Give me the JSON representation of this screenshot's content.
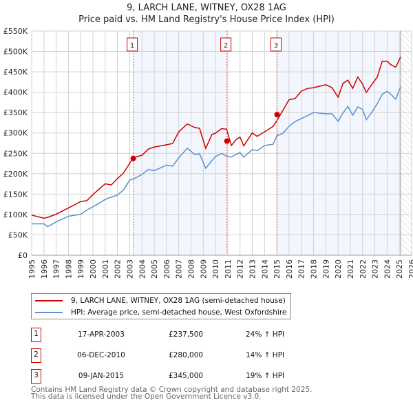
{
  "chart_data": {
    "type": "line",
    "title": "9, LARCH LANE, WITNEY, OX28 1AG",
    "subtitle": "Price paid vs. HM Land Registry's House Price Index (HPI)",
    "xlim": [
      1995,
      2026
    ],
    "ylim": [
      0,
      550000
    ],
    "x_ticks": [
      "1995",
      "1996",
      "1997",
      "1998",
      "1999",
      "2000",
      "2001",
      "2002",
      "2003",
      "2004",
      "2005",
      "2006",
      "2007",
      "2008",
      "2009",
      "2010",
      "2011",
      "2012",
      "2013",
      "2014",
      "2015",
      "2016",
      "2017",
      "2018",
      "2019",
      "2020",
      "2021",
      "2022",
      "2023",
      "2024",
      "2025",
      "2026"
    ],
    "y_ticks": [
      {
        "v": 0,
        "label": "£0"
      },
      {
        "v": 50000,
        "label": "£50K"
      },
      {
        "v": 100000,
        "label": "£100K"
      },
      {
        "v": 150000,
        "label": "£150K"
      },
      {
        "v": 200000,
        "label": "£200K"
      },
      {
        "v": 250000,
        "label": "£250K"
      },
      {
        "v": 300000,
        "label": "£300K"
      },
      {
        "v": 350000,
        "label": "£350K"
      },
      {
        "v": 400000,
        "label": "£400K"
      },
      {
        "v": 450000,
        "label": "£450K"
      },
      {
        "v": 500000,
        "label": "£500K"
      },
      {
        "v": 550000,
        "label": "£550K"
      }
    ],
    "grid": true,
    "hpi_series": {
      "name": "HPI: Average price, semi-detached house, West Oxfordshire",
      "color": "#5b8fd0",
      "x": [
        1995,
        1996,
        1996.3,
        1997,
        1998,
        1999,
        1999.5,
        2000,
        2001,
        2001.5,
        2002,
        2002.5,
        2003,
        2003.3,
        2004,
        2004.5,
        2005,
        2006,
        2006.5,
        2007,
        2007.7,
        2008.3,
        2008.7,
        2009.2,
        2009.7,
        2010,
        2010.5,
        2010.9,
        2011.3,
        2011.7,
        2012,
        2012.3,
        2013,
        2013.4,
        2014,
        2014.7,
        2015,
        2015.5,
        2016,
        2016.5,
        2017,
        2017.5,
        2018,
        2019,
        2019.5,
        2020,
        2020.4,
        2020.8,
        2021.2,
        2021.6,
        2022,
        2022.3,
        2022.8,
        2023.2,
        2023.6,
        2024,
        2024.3,
        2024.7,
        2025.1
      ],
      "y": [
        77000,
        75000,
        73000,
        80000,
        95000,
        103000,
        108000,
        120000,
        138000,
        140000,
        150000,
        160000,
        183000,
        190000,
        196000,
        210000,
        210000,
        218000,
        220000,
        240000,
        260000,
        250000,
        248000,
        212000,
        235000,
        240000,
        250000,
        245000,
        238000,
        250000,
        252000,
        238000,
        262000,
        255000,
        268000,
        275000,
        290000,
        300000,
        318000,
        325000,
        338000,
        342000,
        348000,
        350000,
        345000,
        328000,
        352000,
        362000,
        345000,
        365000,
        355000,
        335000,
        352000,
        370000,
        398000,
        400000,
        395000,
        385000,
        410000
      ]
    },
    "price_series": {
      "name": "9, LARCH LANE, WITNEY, OX28 1AG (semi-detached house)",
      "color": "#cc0000"
    },
    "sales": [
      {
        "id": "1",
        "x": 2003.29,
        "price": 237500,
        "date": "17-APR-2003",
        "price_label": "£237,500",
        "hpi_label": "24% ↑ HPI"
      },
      {
        "id": "2",
        "x": 2010.93,
        "price": 280000,
        "date": "06-DEC-2010",
        "price_label": "£280,000",
        "hpi_label": "14% ↑ HPI"
      },
      {
        "id": "3",
        "x": 2015.02,
        "price": 345000,
        "date": "09-JAN-2015",
        "price_label": "£345,000",
        "hpi_label": "19% ↑ HPI"
      }
    ],
    "legend_placement": "below"
  },
  "footer": {
    "line1": "Contains HM Land Registry data © Crown copyright and database right 2025.",
    "line2": "This data is licensed under the Open Government Licence v3.0."
  }
}
